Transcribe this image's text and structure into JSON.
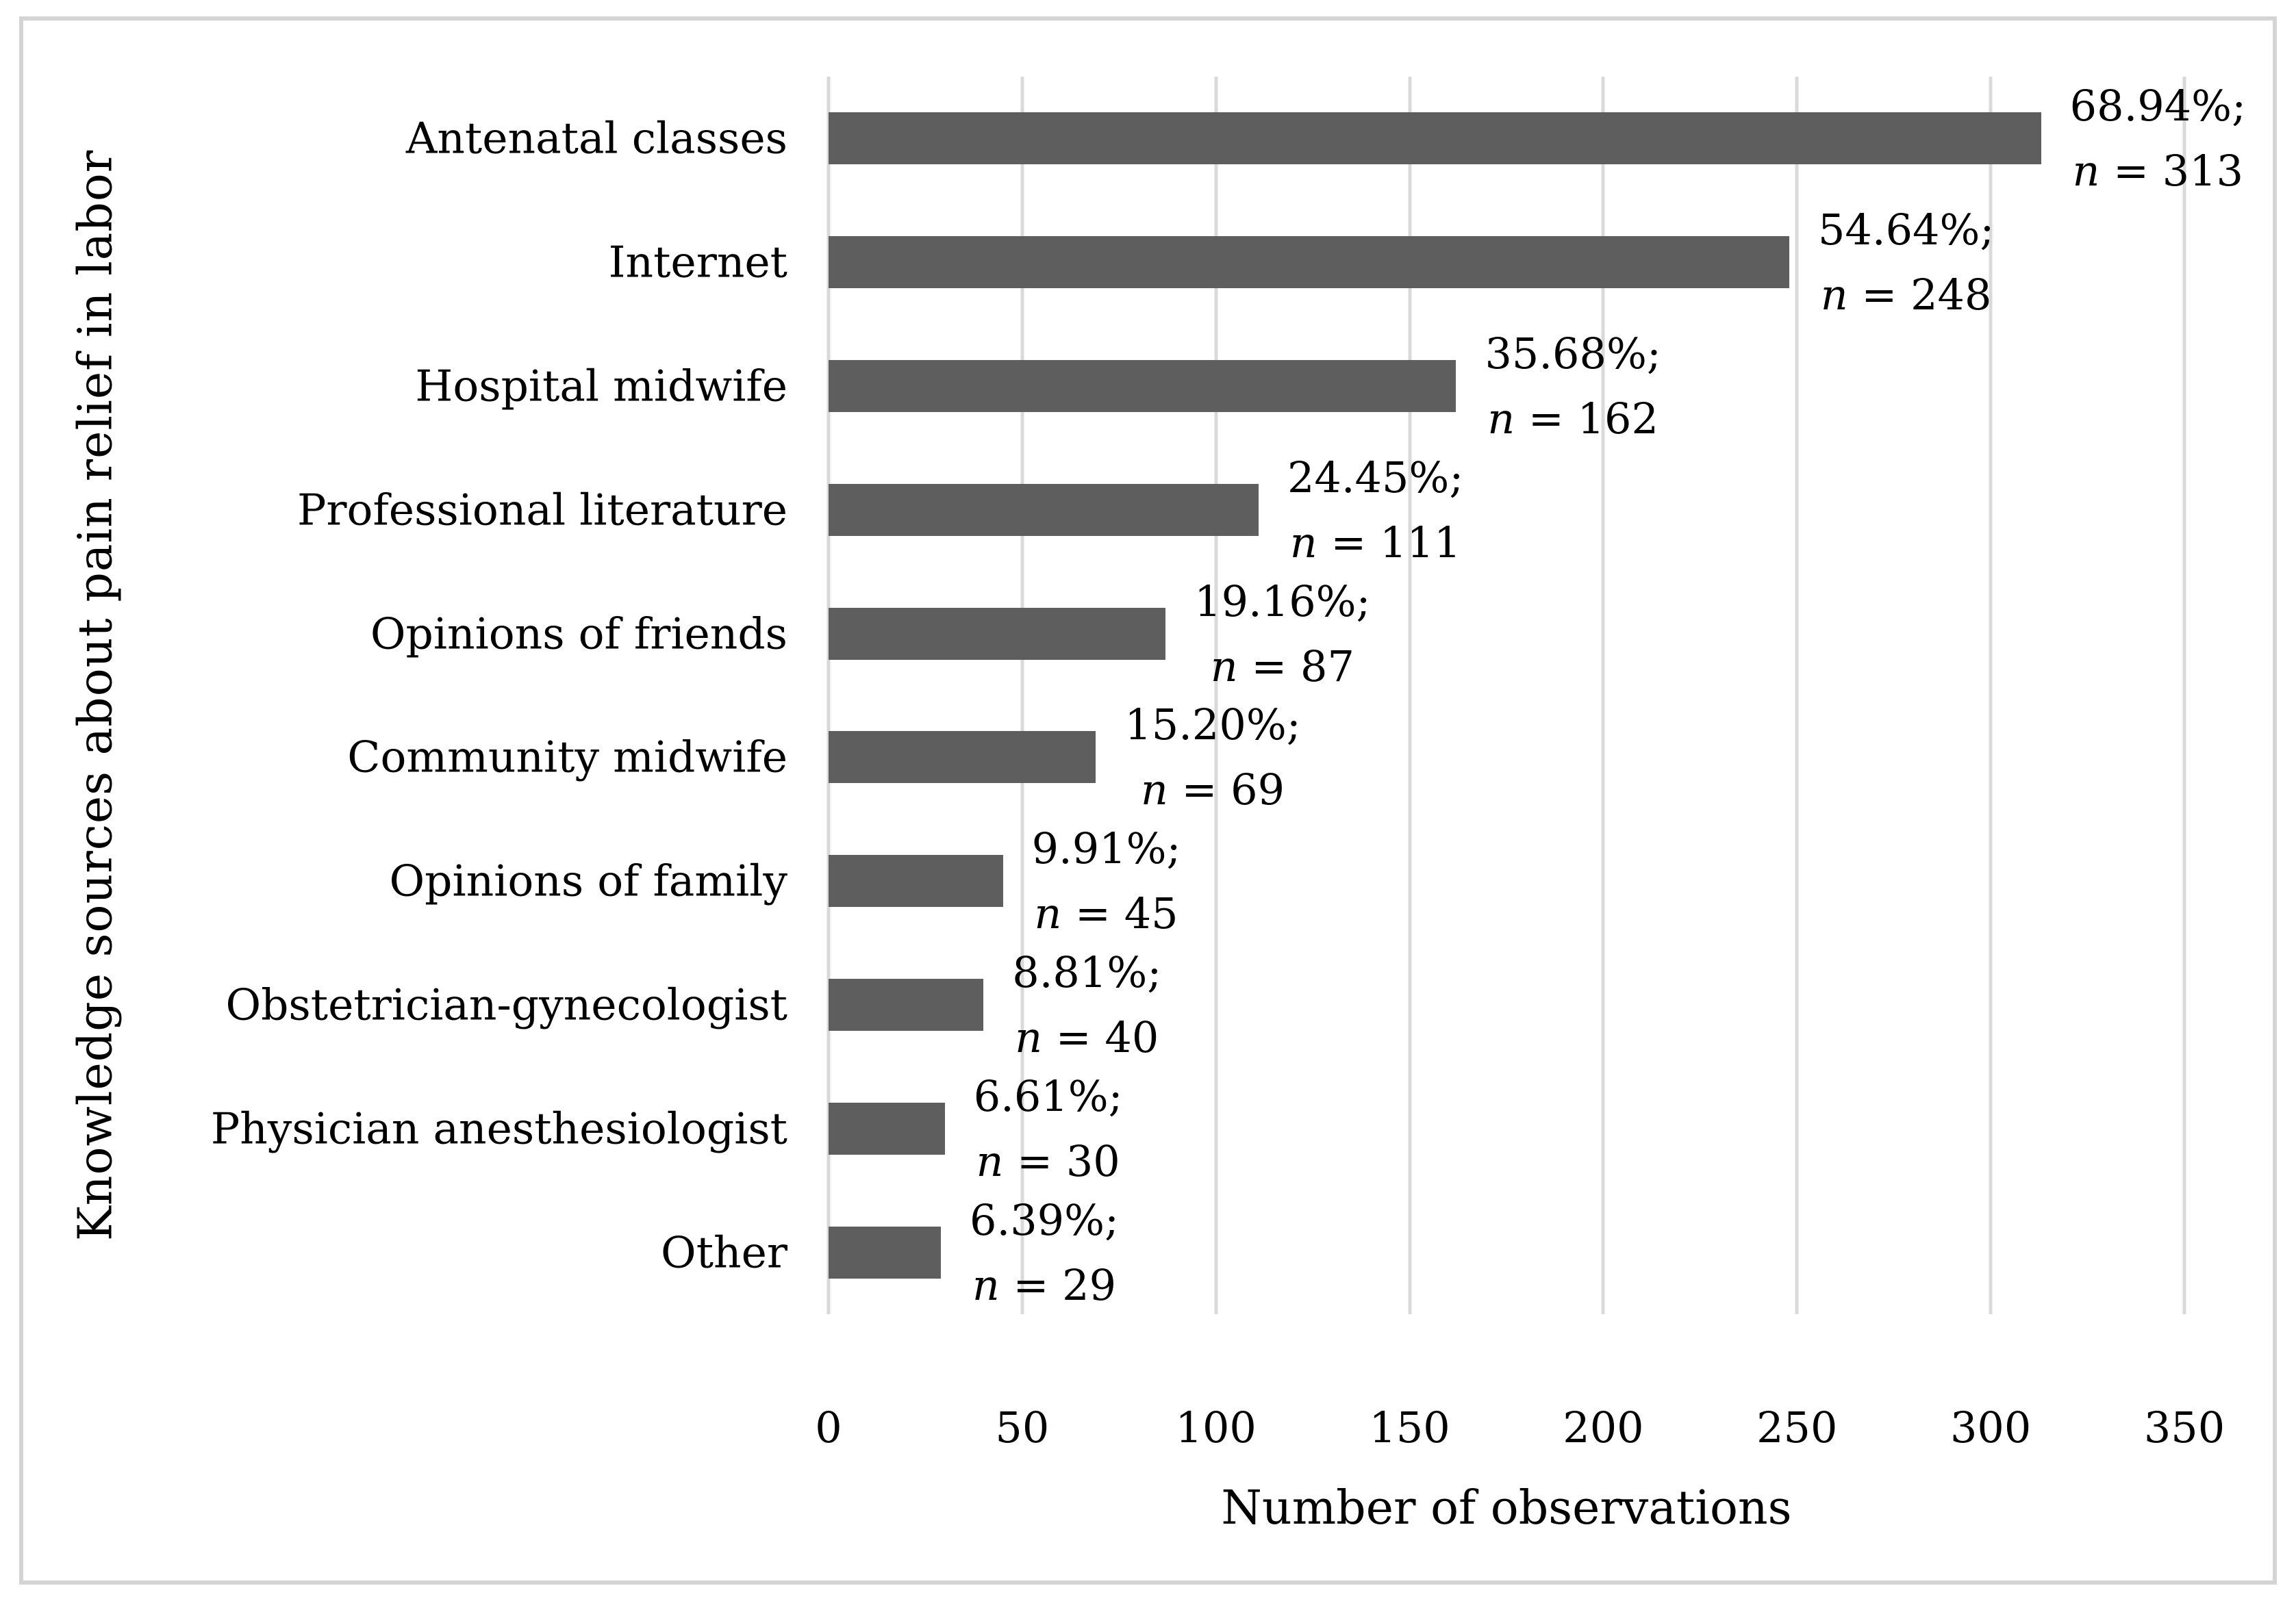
{
  "chart_data": {
    "type": "bar",
    "orientation": "horizontal",
    "title": "",
    "xlabel": "Number of observations",
    "ylabel": "Knowledge sources about pain relief in labor",
    "categories": [
      "Antenatal classes",
      "Internet",
      "Hospital midwife",
      "Professional literature",
      "Opinions of friends",
      "Community midwife",
      "Opinions of family",
      "Obstetrician-gynecologist",
      "Physician anesthesiologist",
      "Other"
    ],
    "values": [
      313,
      248,
      162,
      111,
      87,
      69,
      45,
      40,
      30,
      29
    ],
    "percent_labels": [
      "68.94%;",
      "54.64%;",
      "35.68%;",
      "24.45%;",
      "19.16%;",
      "15.20%;",
      "9.91%;",
      "8.81%;",
      "6.61%;",
      "6.39%;"
    ],
    "n_prefix_italic": "n",
    "n_separator": " = ",
    "xlim": [
      0,
      350
    ],
    "xticks": [
      0,
      50,
      100,
      150,
      200,
      250,
      300,
      350
    ],
    "grid": "vertical",
    "legend": "none",
    "bar_color": "#5e5e5e",
    "gridline_color": "#d9d9d9",
    "frame_color": "#d4d4d4",
    "text_color": "#000000"
  }
}
